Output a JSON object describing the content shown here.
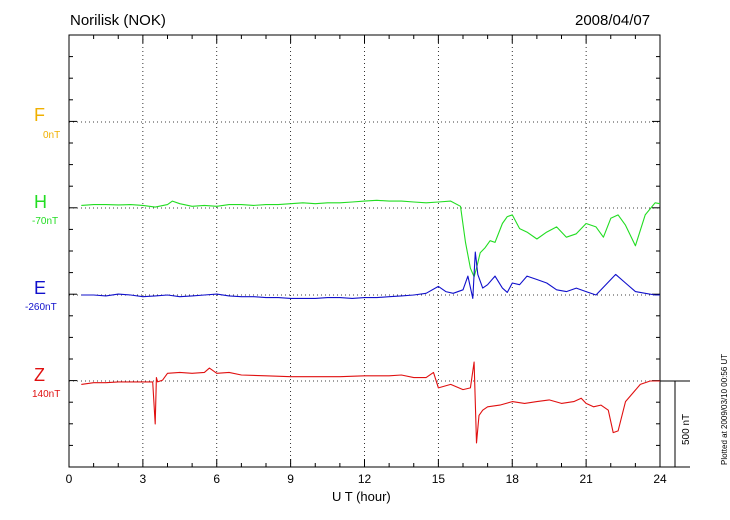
{
  "header": {
    "station": "Norilisk (NOK)",
    "date": "2008/04/07"
  },
  "footer": {
    "plotted": "Plotted at 2009/03/10 00:56 UT"
  },
  "chart_data": {
    "type": "line",
    "xlabel": "U T (hour)",
    "xlim": [
      0,
      24
    ],
    "xticks": [
      "0",
      "3",
      "6",
      "9",
      "12",
      "15",
      "18",
      "21",
      "24"
    ],
    "scale_bar": "500 nT",
    "grid": true,
    "colors": {
      "F": "#f0b000",
      "H": "#22dd22",
      "E": "#1010cc",
      "Z": "#e01010"
    },
    "components": [
      {
        "name": "F",
        "baseline": "0nT",
        "x": [],
        "y": []
      },
      {
        "name": "H",
        "baseline": "-70nT",
        "x": [
          0.5,
          1,
          1.5,
          2,
          2.5,
          3,
          3.5,
          4,
          4.2,
          4.5,
          5,
          5.5,
          6,
          6.5,
          7,
          7.5,
          8,
          8.5,
          9,
          9.5,
          10,
          10.5,
          11,
          11.5,
          12,
          12.5,
          13,
          13.5,
          14,
          14.5,
          15,
          15.5,
          15.9,
          16.1,
          16.3,
          16.45,
          16.55,
          16.7,
          16.9,
          17.1,
          17.3,
          17.6,
          17.8,
          18,
          18.3,
          18.6,
          19,
          19.4,
          19.8,
          20.2,
          20.6,
          21,
          21.4,
          21.7,
          22,
          22.3,
          22.6,
          23,
          23.4,
          23.8,
          24
        ],
        "y": [
          15,
          20,
          20,
          18,
          20,
          15,
          5,
          20,
          40,
          25,
          10,
          15,
          10,
          20,
          20,
          15,
          20,
          20,
          25,
          30,
          25,
          30,
          30,
          35,
          40,
          45,
          40,
          40,
          35,
          30,
          35,
          40,
          10,
          -200,
          -350,
          -400,
          -350,
          -260,
          -230,
          -190,
          -200,
          -90,
          -50,
          -40,
          -120,
          -140,
          -180,
          -140,
          -110,
          -170,
          -150,
          -90,
          -110,
          -170,
          -60,
          -40,
          -100,
          -220,
          -40,
          30,
          25
        ]
      },
      {
        "name": "E",
        "baseline": "-260nT",
        "x": [
          0.5,
          1,
          1.5,
          2,
          2.5,
          3,
          3.5,
          4,
          4.5,
          5,
          5.5,
          6,
          6.5,
          7,
          7.5,
          8,
          8.5,
          9,
          9.5,
          10,
          10.5,
          11,
          11.5,
          12,
          12.5,
          13,
          13.5,
          14,
          14.5,
          15,
          15.3,
          15.6,
          16,
          16.2,
          16.4,
          16.5,
          16.6,
          16.8,
          17,
          17.3,
          17.6,
          17.8,
          18,
          18.3,
          18.6,
          19,
          19.4,
          19.8,
          20.2,
          20.6,
          21,
          21.4,
          21.8,
          22.2,
          22.6,
          23,
          23.4,
          23.8,
          24
        ],
        "y": [
          0,
          0,
          -5,
          5,
          0,
          -10,
          -5,
          0,
          -10,
          -5,
          0,
          5,
          -5,
          -10,
          -10,
          -15,
          -15,
          -20,
          -20,
          -20,
          -15,
          -15,
          -20,
          -15,
          -15,
          -10,
          -5,
          0,
          10,
          50,
          20,
          10,
          30,
          110,
          -20,
          250,
          120,
          40,
          60,
          110,
          40,
          15,
          70,
          60,
          110,
          90,
          70,
          30,
          20,
          40,
          20,
          0,
          60,
          120,
          70,
          20,
          10,
          0,
          0
        ]
      },
      {
        "name": "Z",
        "baseline": "140nT",
        "x": [
          0.5,
          1,
          1.5,
          2,
          2.5,
          3,
          3.4,
          3.5,
          3.55,
          3.6,
          3.8,
          4,
          4.5,
          5,
          5.5,
          5.7,
          6,
          6.5,
          7,
          8,
          9,
          10,
          11,
          12,
          13,
          13.5,
          14,
          14.5,
          14.8,
          15,
          15.5,
          16,
          16.3,
          16.45,
          16.55,
          16.65,
          16.8,
          17,
          17.5,
          18,
          18.5,
          19,
          19.5,
          20,
          20.5,
          20.8,
          21,
          21.3,
          21.6,
          21.9,
          22.1,
          22.3,
          22.6,
          22.9,
          23.2,
          23.6,
          24
        ],
        "y": [
          -20,
          -10,
          -10,
          -5,
          -5,
          -5,
          -5,
          -250,
          20,
          -5,
          5,
          45,
          50,
          45,
          50,
          75,
          45,
          50,
          35,
          30,
          25,
          25,
          25,
          30,
          30,
          35,
          20,
          20,
          50,
          -40,
          -20,
          -50,
          -40,
          110,
          -360,
          -200,
          -170,
          -150,
          -140,
          -120,
          -130,
          -120,
          -110,
          -130,
          -120,
          -100,
          -130,
          -150,
          -140,
          -170,
          -300,
          -290,
          -120,
          -70,
          -20,
          0,
          0
        ]
      }
    ]
  }
}
